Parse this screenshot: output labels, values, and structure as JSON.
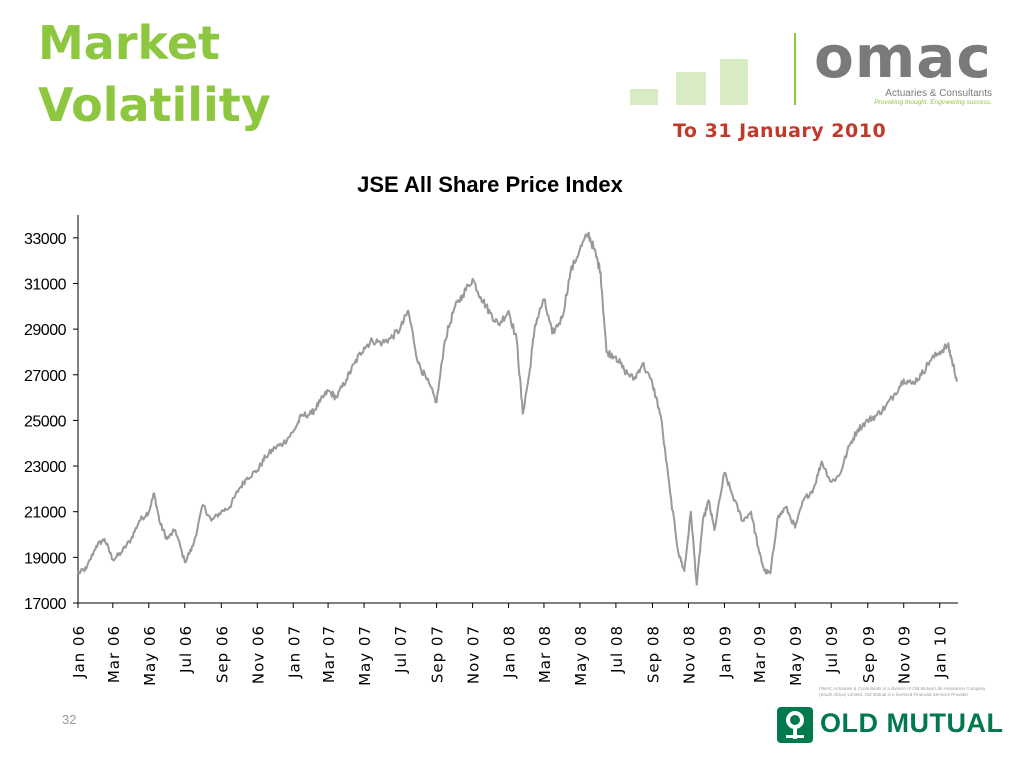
{
  "slide": {
    "title": "Market\nVolatility",
    "subtitle": "To 31 January 2010",
    "page_number": "32"
  },
  "logos": {
    "omac_word": "omac",
    "omac_tagline": "Actuaries & Consultants",
    "omac_tagline2": "Provoking thought. Engineering success.",
    "old_mutual": "OLD MUTUAL",
    "disclaimer": "OMAC Actuaries & Consultants is a division of Old Mutual Life Assurance Company (South Africa) Limited. Old Mutual is a licensed Financial Services Provider"
  },
  "colors": {
    "title": "#8dc63f",
    "subtitle": "#c0392b",
    "series": "#999999",
    "old_mutual": "#007a4d"
  },
  "chart_data": {
    "type": "line",
    "title": "JSE All Share Price Index",
    "xlabel": "",
    "ylabel": "",
    "ylim": [
      17000,
      34000
    ],
    "yticks": [
      17000,
      19000,
      21000,
      23000,
      25000,
      27000,
      29000,
      31000,
      33000
    ],
    "xlim": [
      "2006-01",
      "2010-02"
    ],
    "xticks": [
      "Jan 06",
      "Mar 06",
      "May 06",
      "Jul 06",
      "Sep 06",
      "Nov 06",
      "Jan 07",
      "Mar 07",
      "May 07",
      "Jul 07",
      "Sep 07",
      "Nov 07",
      "Jan 08",
      "Mar 08",
      "May 08",
      "Jul 08",
      "Sep 08",
      "Nov 08",
      "Jan 09",
      "Mar 09",
      "May 09",
      "Jul 09",
      "Sep 09",
      "Nov 09",
      "Jan 10"
    ],
    "grid": false,
    "series": [
      {
        "x": [
          "2006-01-01",
          "2006-01-15",
          "2006-02-01",
          "2006-02-15",
          "2006-03-01",
          "2006-03-15",
          "2006-04-01",
          "2006-04-15",
          "2006-05-01",
          "2006-05-10",
          "2006-05-20",
          "2006-06-01",
          "2006-06-15",
          "2006-07-01",
          "2006-07-15",
          "2006-08-01",
          "2006-08-15",
          "2006-09-01",
          "2006-09-15",
          "2006-10-01",
          "2006-10-15",
          "2006-11-01",
          "2006-11-15",
          "2006-12-01",
          "2006-12-15",
          "2007-01-01",
          "2007-01-15",
          "2007-02-01",
          "2007-02-15",
          "2007-03-01",
          "2007-03-15",
          "2007-04-01",
          "2007-04-15",
          "2007-05-01",
          "2007-05-15",
          "2007-06-01",
          "2007-06-15",
          "2007-07-01",
          "2007-07-15",
          "2007-08-01",
          "2007-08-15",
          "2007-09-01",
          "2007-09-15",
          "2007-10-01",
          "2007-10-15",
          "2007-11-01",
          "2007-11-15",
          "2007-12-01",
          "2007-12-15",
          "2008-01-01",
          "2008-01-15",
          "2008-01-25",
          "2008-02-05",
          "2008-02-15",
          "2008-03-01",
          "2008-03-15",
          "2008-04-01",
          "2008-04-15",
          "2008-05-01",
          "2008-05-15",
          "2008-05-25",
          "2008-06-05",
          "2008-06-15",
          "2008-07-01",
          "2008-07-15",
          "2008-08-01",
          "2008-08-15",
          "2008-09-01",
          "2008-09-15",
          "2008-10-01",
          "2008-10-15",
          "2008-10-25",
          "2008-11-05",
          "2008-11-15",
          "2008-11-25",
          "2008-12-05",
          "2008-12-15",
          "2009-01-01",
          "2009-01-15",
          "2009-02-01",
          "2009-02-15",
          "2009-03-01",
          "2009-03-10",
          "2009-03-20",
          "2009-04-01",
          "2009-04-15",
          "2009-05-01",
          "2009-05-15",
          "2009-06-01",
          "2009-06-15",
          "2009-07-01",
          "2009-07-15",
          "2009-08-01",
          "2009-08-15",
          "2009-09-01",
          "2009-09-15",
          "2009-10-01",
          "2009-10-15",
          "2009-11-01",
          "2009-11-15",
          "2009-12-01",
          "2009-12-15",
          "2010-01-01",
          "2010-01-15",
          "2010-01-22",
          "2010-01-31"
        ],
        "values": [
          18300,
          18500,
          19500,
          19800,
          18900,
          19200,
          19800,
          20600,
          21000,
          21800,
          20500,
          19800,
          20200,
          18800,
          19500,
          21300,
          20600,
          21000,
          21200,
          22000,
          22500,
          22800,
          23400,
          23800,
          24000,
          24500,
          25200,
          25300,
          25800,
          26300,
          26000,
          26800,
          27500,
          28200,
          28500,
          28400,
          28600,
          29000,
          29800,
          27500,
          26800,
          25800,
          28500,
          29900,
          30500,
          31200,
          30400,
          29700,
          29200,
          29800,
          28500,
          25300,
          27000,
          29200,
          30300,
          28800,
          29500,
          31500,
          32500,
          33200,
          32500,
          31500,
          28000,
          27800,
          27200,
          26800,
          27500,
          26600,
          25200,
          21800,
          19200,
          18400,
          21000,
          17800,
          20500,
          21500,
          20200,
          22700,
          21700,
          20600,
          21000,
          19200,
          18400,
          18300,
          20700,
          21200,
          20300,
          21500,
          22000,
          23200,
          22300,
          22600,
          23900,
          24600,
          25000,
          25200,
          25600,
          26100,
          26800,
          26600,
          27000,
          27600,
          28000,
          28300,
          27600,
          26700
        ]
      }
    ]
  }
}
